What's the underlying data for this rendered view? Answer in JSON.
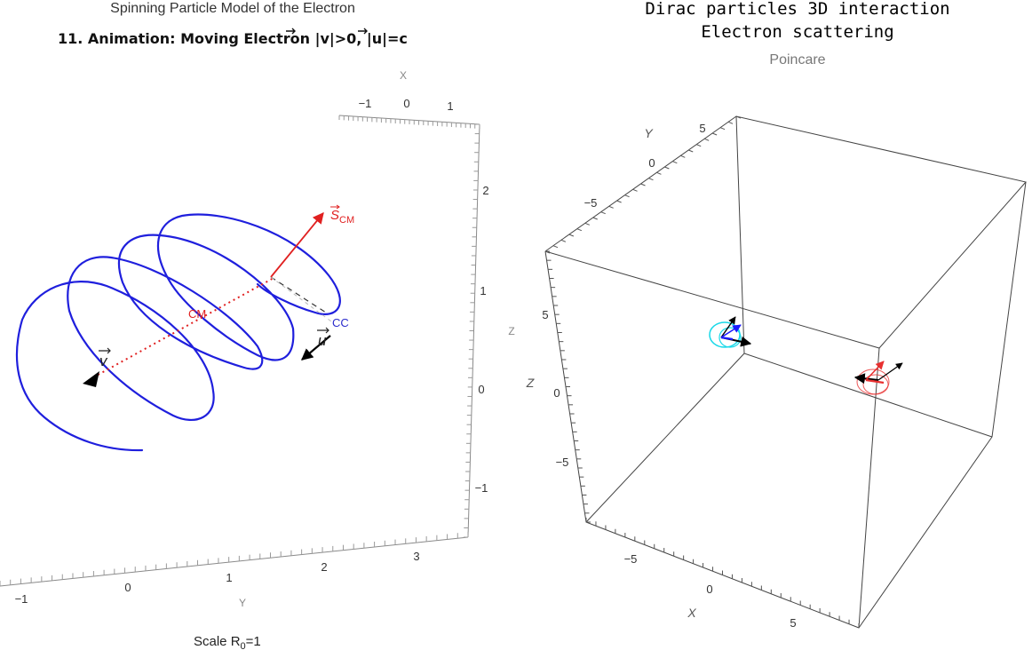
{
  "left_panel": {
    "title": "Spinning Particle Model of the Electron",
    "subtitle_prefix": "11. Animation: Moving Electron |",
    "subtitle_v": "v",
    "subtitle_mid": "|>0, |",
    "subtitle_u": "u",
    "subtitle_suffix": "|=c",
    "x_axis_label": "X",
    "y_axis_label": "Y",
    "z_axis_label": "Z",
    "x_ticks": [
      "−1",
      "0",
      "1"
    ],
    "y_ticks": [
      "−1",
      "0",
      "1",
      "2",
      "3"
    ],
    "z_ticks": [
      "2",
      "1",
      "0",
      "−1"
    ],
    "labels": {
      "s_cm_base": "S",
      "s_cm_sub": "CM",
      "cm": "CM",
      "cc": "CC",
      "u": "u",
      "v": "v"
    },
    "scale_prefix": "Scale R",
    "scale_sub": "0",
    "scale_suffix": "=1",
    "colors": {
      "helix": "#1f1fdd",
      "spin_vector": "#e02020",
      "axis": "#999999"
    }
  },
  "right_panel": {
    "title_line1": "Dirac particles 3D interaction",
    "title_line2": "Electron scattering",
    "subtitle": "Poincare",
    "x_axis_label": "X",
    "y_axis_label": "Y",
    "z_axis_label": "Z",
    "x_ticks": [
      "−5",
      "0",
      "5"
    ],
    "y_ticks": [
      "5",
      "0",
      "−5"
    ],
    "z_ticks": [
      "5",
      "0",
      "−5"
    ],
    "colors": {
      "particle_1": "#18d8e8",
      "particle_1_spin": "#1a1aff",
      "particle_2": "#e83030",
      "box": "#555555"
    }
  }
}
